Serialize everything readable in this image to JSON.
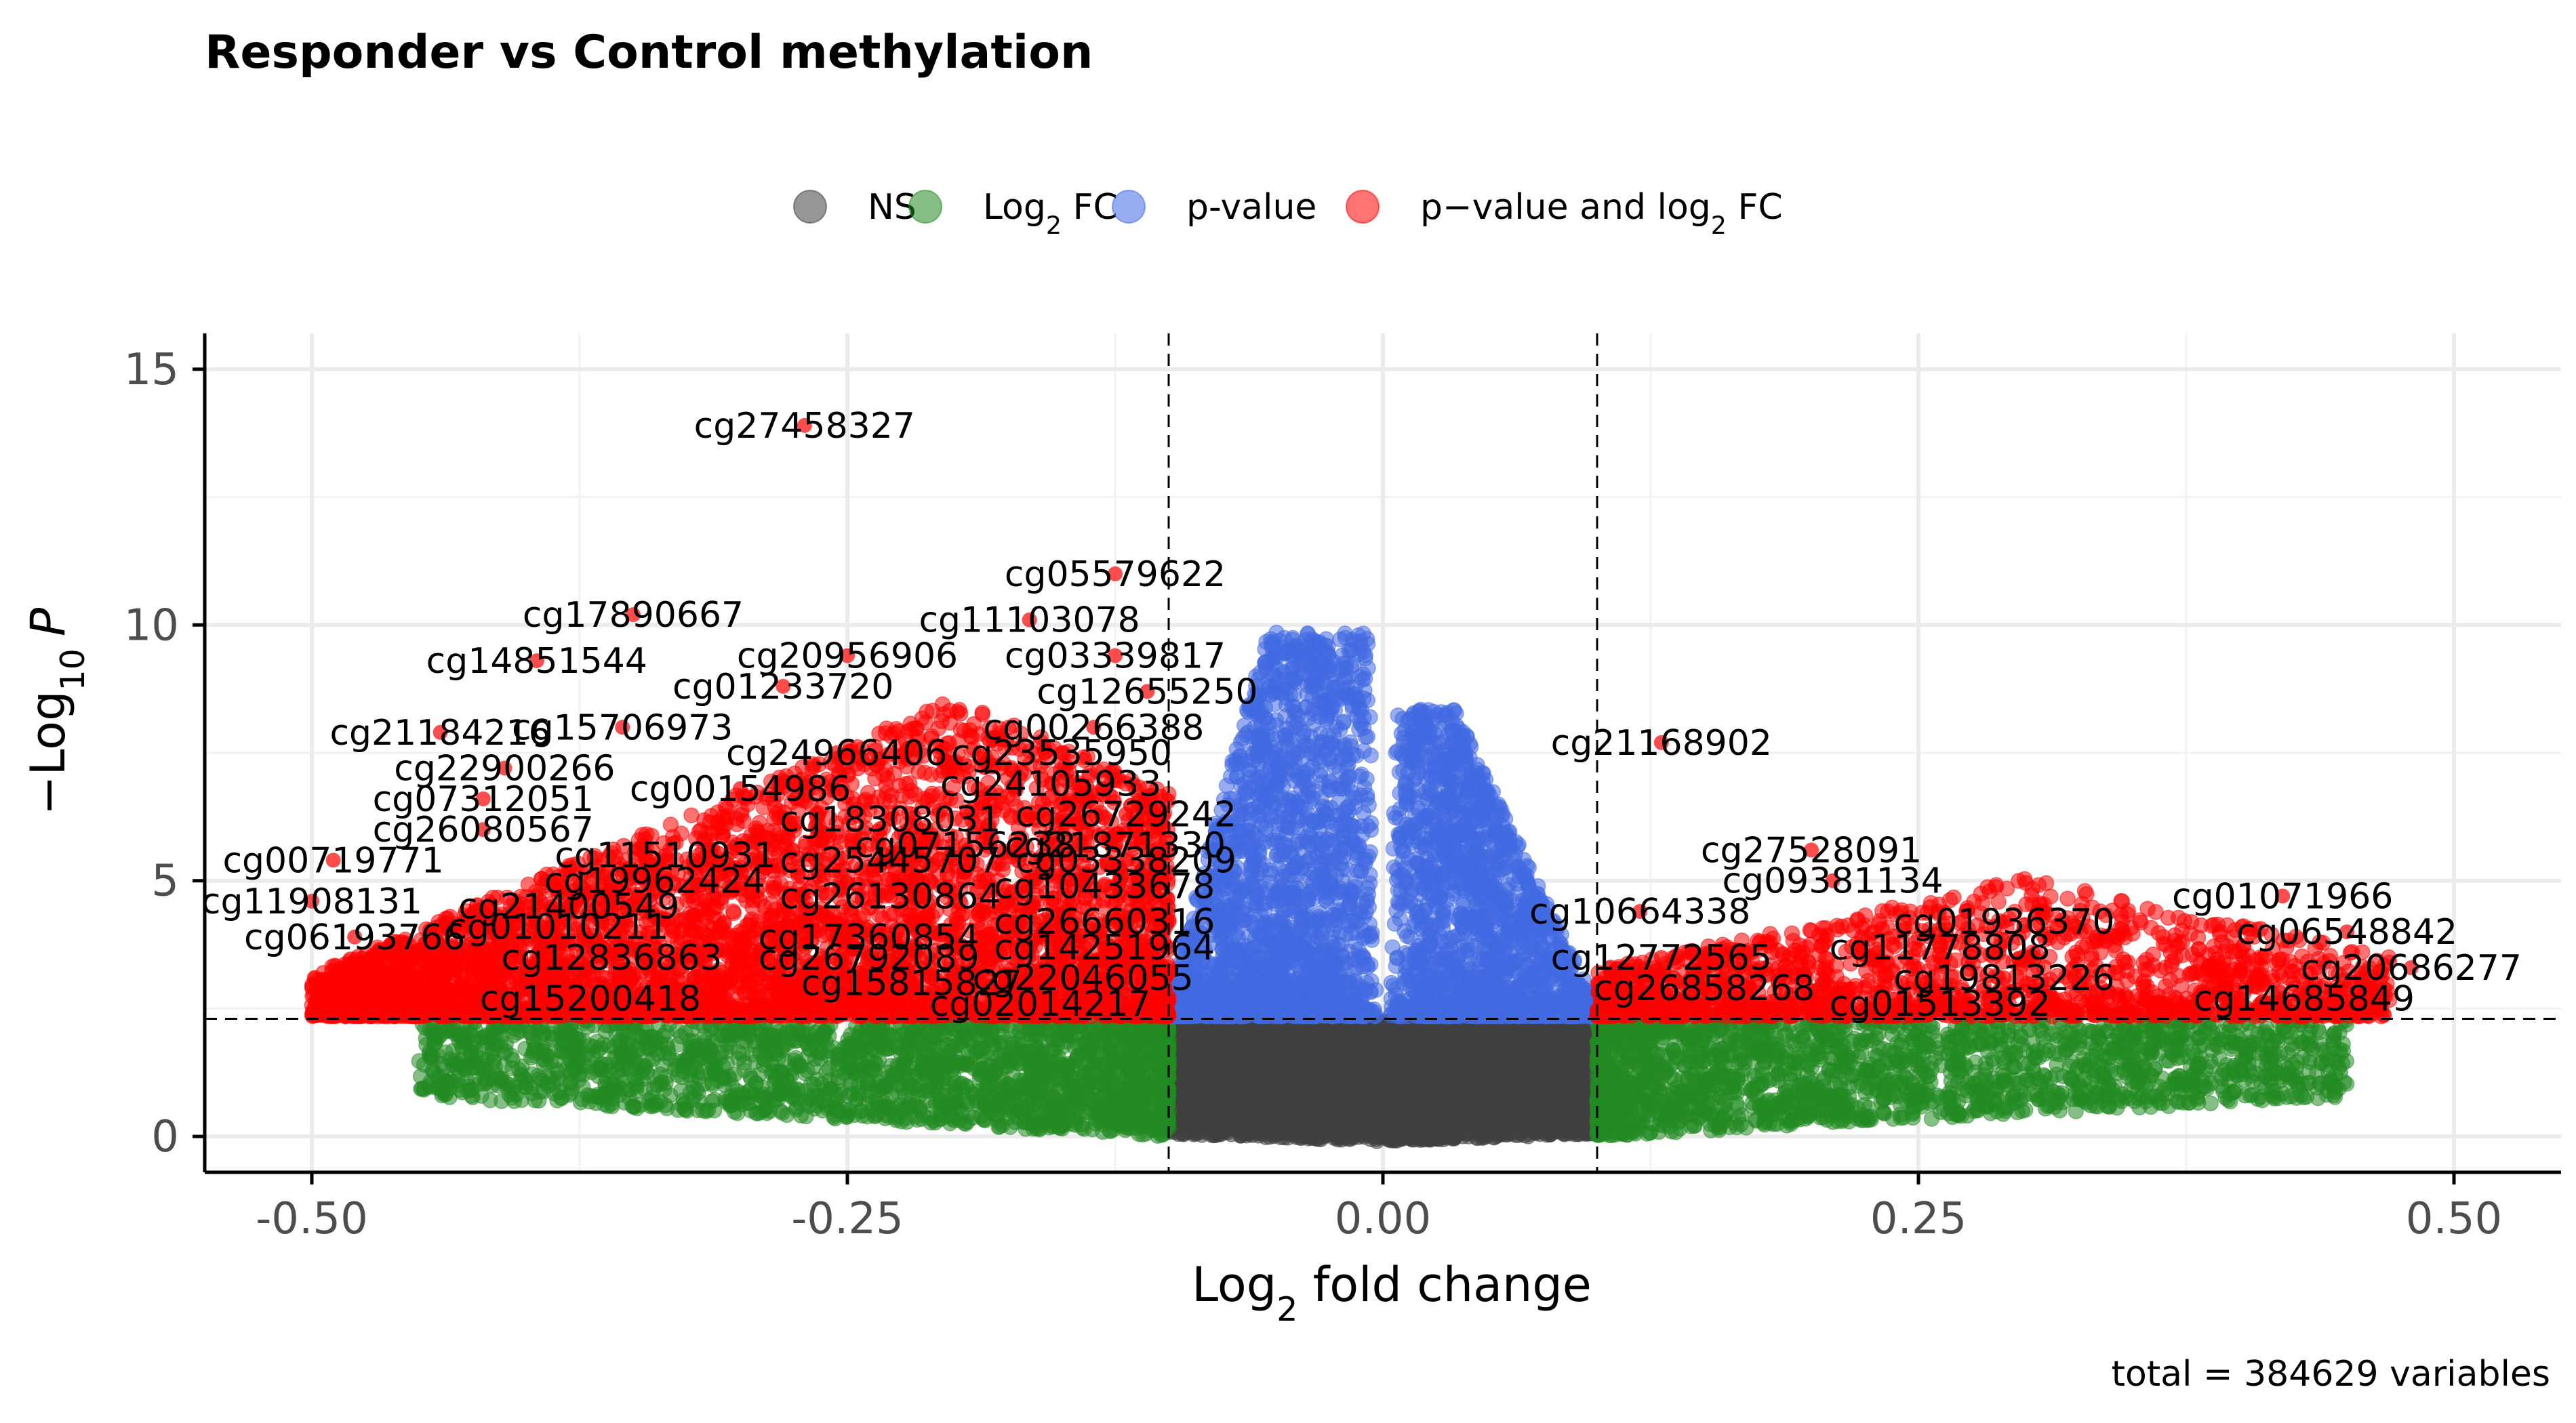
{
  "chart_data": {
    "type": "scatter",
    "title": "Responder vs Control methylation",
    "xlabel": "Log2 fold change",
    "ylabel": "-Log10 P",
    "caption": "total = 384629 variables",
    "xlim": [
      -0.55,
      0.55
    ],
    "ylim": [
      -0.7,
      15.7
    ],
    "x_ticks": [
      -0.5,
      -0.25,
      0.0,
      0.25,
      0.5
    ],
    "x_tick_labels": [
      "-0.50",
      "-0.25",
      "0.00",
      "0.25",
      "0.50"
    ],
    "y_ticks": [
      0,
      5,
      10,
      15
    ],
    "y_tick_labels": [
      "0",
      "5",
      "10",
      "15"
    ],
    "grid": true,
    "legend_position": "top",
    "fc_cutoff": 0.1,
    "p_cutoff_log10": 2.3,
    "legend": [
      {
        "key": "ns",
        "label": "NS",
        "color": "#3f3f3f"
      },
      {
        "key": "fc",
        "label": "Log2 FC",
        "color": "#228b22"
      },
      {
        "key": "p",
        "label": "p-value",
        "color": "#4169e1"
      },
      {
        "key": "both",
        "label": "p−value and log2 FC",
        "color": "#ff0000"
      }
    ],
    "labeled_points": [
      {
        "label": "cg27458327",
        "x": -0.27,
        "y": 13.9
      },
      {
        "label": "cg05579622",
        "x": -0.125,
        "y": 11.0
      },
      {
        "label": "cg17890667",
        "x": -0.35,
        "y": 10.2
      },
      {
        "label": "cg11103078",
        "x": -0.165,
        "y": 10.1
      },
      {
        "label": "cg14851544",
        "x": -0.395,
        "y": 9.3
      },
      {
        "label": "cg20956906",
        "x": -0.25,
        "y": 9.4
      },
      {
        "label": "cg03339817",
        "x": -0.125,
        "y": 9.4
      },
      {
        "label": "cg01233720",
        "x": -0.28,
        "y": 8.8
      },
      {
        "label": "cg12655250",
        "x": -0.11,
        "y": 8.7
      },
      {
        "label": "cg21184216",
        "x": -0.44,
        "y": 7.9
      },
      {
        "label": "cg15706973",
        "x": -0.355,
        "y": 8.0
      },
      {
        "label": "cg00266388",
        "x": -0.135,
        "y": 8.0
      },
      {
        "label": "cg24966406",
        "x": -0.255,
        "y": 7.5
      },
      {
        "label": "cg23535950",
        "x": -0.15,
        "y": 7.5
      },
      {
        "label": "cg22900266",
        "x": -0.41,
        "y": 7.2
      },
      {
        "label": "cg00154986",
        "x": -0.3,
        "y": 6.8
      },
      {
        "label": "cg24105933",
        "x": -0.155,
        "y": 6.9
      },
      {
        "label": "cg07312051",
        "x": -0.42,
        "y": 6.6
      },
      {
        "label": "cg26729242",
        "x": -0.12,
        "y": 6.3
      },
      {
        "label": "cg18308031",
        "x": -0.23,
        "y": 6.2
      },
      {
        "label": "cg26080567",
        "x": -0.42,
        "y": 6.0
      },
      {
        "label": "cg07156238",
        "x": -0.195,
        "y": 5.7
      },
      {
        "label": "cg21871330",
        "x": -0.125,
        "y": 5.7
      },
      {
        "label": "cg11510931",
        "x": -0.335,
        "y": 5.5
      },
      {
        "label": "cg00719771",
        "x": -0.49,
        "y": 5.4
      },
      {
        "label": "cg25445707",
        "x": -0.23,
        "y": 5.4
      },
      {
        "label": "cg03338209",
        "x": -0.12,
        "y": 5.4
      },
      {
        "label": "cg19962424",
        "x": -0.34,
        "y": 5.0
      },
      {
        "label": "cg10433678",
        "x": -0.13,
        "y": 4.9
      },
      {
        "label": "cg11908131",
        "x": -0.5,
        "y": 4.6
      },
      {
        "label": "cg26130864",
        "x": -0.23,
        "y": 4.7
      },
      {
        "label": "cg21400549",
        "x": -0.38,
        "y": 4.5
      },
      {
        "label": "cg26660316",
        "x": -0.13,
        "y": 4.2
      },
      {
        "label": "cg01010211",
        "x": -0.385,
        "y": 4.1
      },
      {
        "label": "cg17360854",
        "x": -0.24,
        "y": 3.9
      },
      {
        "label": "cg06193766",
        "x": -0.48,
        "y": 3.9
      },
      {
        "label": "cg14251964",
        "x": -0.13,
        "y": 3.7
      },
      {
        "label": "cg12836863",
        "x": -0.36,
        "y": 3.5
      },
      {
        "label": "cg26792089",
        "x": -0.24,
        "y": 3.5
      },
      {
        "label": "cg22046055",
        "x": -0.14,
        "y": 3.1
      },
      {
        "label": "cg15815827",
        "x": -0.22,
        "y": 3.0
      },
      {
        "label": "cg15200418",
        "x": -0.37,
        "y": 2.7
      },
      {
        "label": "cg02014217",
        "x": -0.16,
        "y": 2.6
      },
      {
        "label": "cg21168902",
        "x": 0.13,
        "y": 7.7
      },
      {
        "label": "cg27528091",
        "x": 0.2,
        "y": 5.6
      },
      {
        "label": "cg09381134",
        "x": 0.21,
        "y": 5.0
      },
      {
        "label": "cg10664338",
        "x": 0.12,
        "y": 4.4
      },
      {
        "label": "cg01936370",
        "x": 0.29,
        "y": 4.2
      },
      {
        "label": "cg12772565",
        "x": 0.13,
        "y": 3.5
      },
      {
        "label": "cg11778808",
        "x": 0.26,
        "y": 3.7
      },
      {
        "label": "cg26858268",
        "x": 0.15,
        "y": 2.9
      },
      {
        "label": "cg19813226",
        "x": 0.29,
        "y": 3.1
      },
      {
        "label": "cg01513392",
        "x": 0.26,
        "y": 2.6
      },
      {
        "label": "cg01071966",
        "x": 0.42,
        "y": 4.7
      },
      {
        "label": "cg06548842",
        "x": 0.45,
        "y": 4.0
      },
      {
        "label": "cg20686277",
        "x": 0.48,
        "y": 3.3
      },
      {
        "label": "cg14685849",
        "x": 0.43,
        "y": 2.7
      }
    ]
  }
}
